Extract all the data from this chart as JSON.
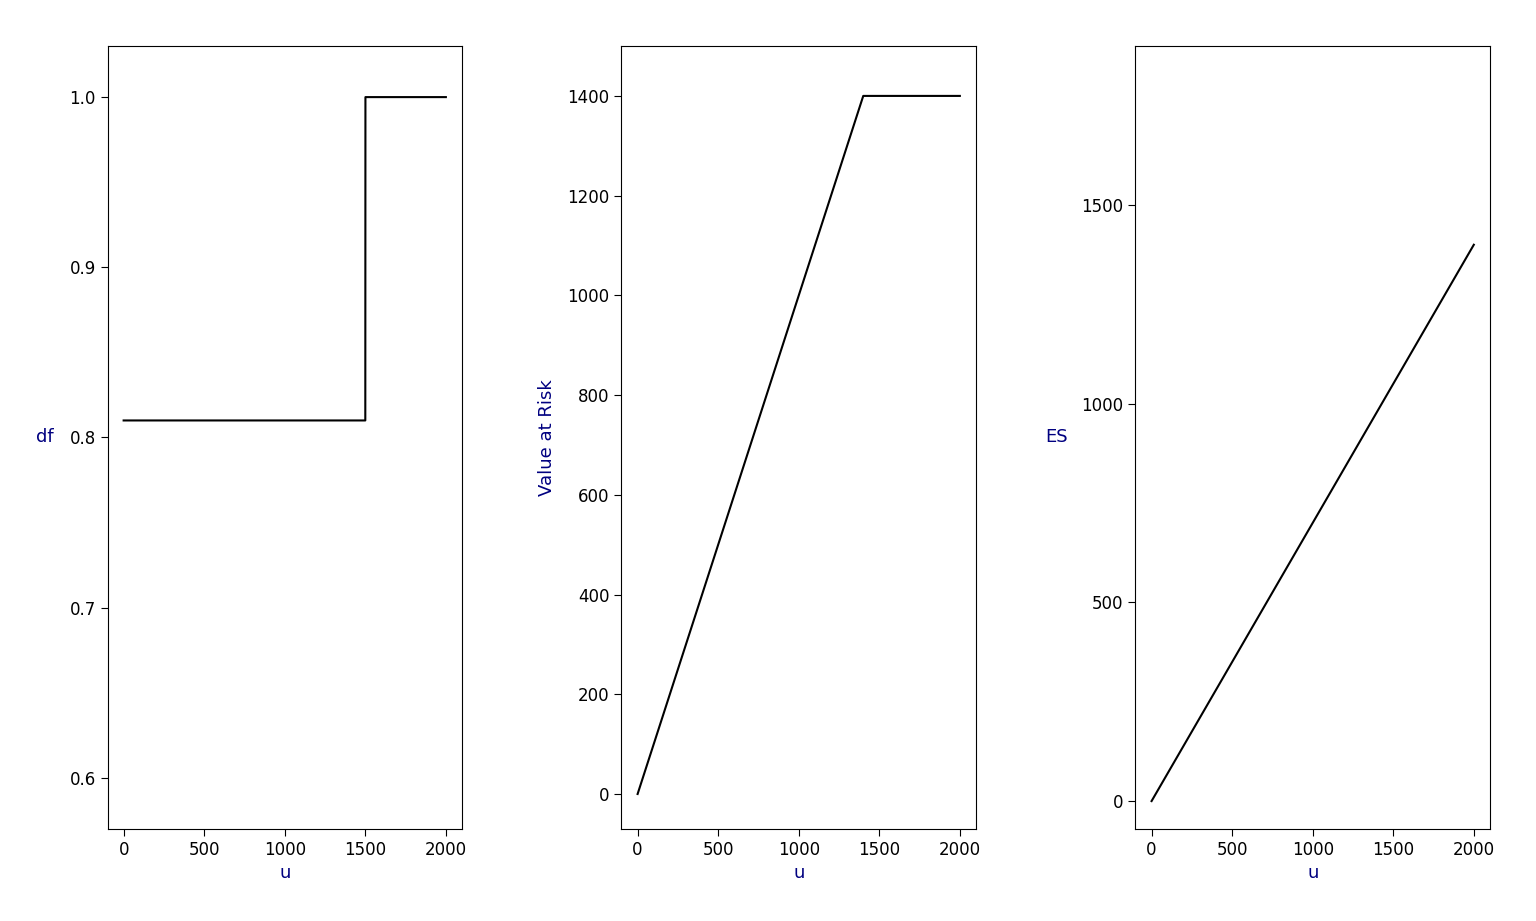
{
  "fig_width": 15.36,
  "fig_height": 9.21,
  "dpi": 100,
  "fig_bg": "#ffffff",
  "line_color": "#000000",
  "line_width": 1.5,
  "label_color": "#000080",
  "tick_color": "#000000",
  "tick_font_size": 12,
  "label_font_size": 13,
  "u_min": 0,
  "u_max": 2000,
  "u_steps": 10000,
  "plot1": {
    "ylabel": "df",
    "xlabel": "u",
    "xlim": [
      -100,
      2100
    ],
    "ylim": [
      0.57,
      1.03
    ],
    "yticks": [
      0.6,
      0.7,
      0.8,
      0.9,
      1.0
    ],
    "xticks": [
      0,
      500,
      1000,
      1500,
      2000
    ],
    "df_low": 0.81,
    "df_high": 1.0,
    "step_at": 1500
  },
  "plot2": {
    "ylabel": "Value at Risk",
    "xlabel": "u",
    "xlim": [
      -100,
      2100
    ],
    "ylim": [
      -70,
      1500
    ],
    "yticks": [
      0,
      200,
      400,
      600,
      800,
      1000,
      1200,
      1400
    ],
    "xticks": [
      0,
      500,
      1000,
      1500,
      2000
    ],
    "var_max": 1400,
    "var_cap_at": 1400
  },
  "plot3": {
    "ylabel": "ES",
    "xlabel": "u",
    "xlim": [
      -100,
      2100
    ],
    "ylim": [
      -70,
      1900
    ],
    "yticks": [
      0,
      500,
      1000,
      1500
    ],
    "xticks": [
      0,
      500,
      1000,
      1500,
      2000
    ],
    "es_at_2000": 1400
  }
}
